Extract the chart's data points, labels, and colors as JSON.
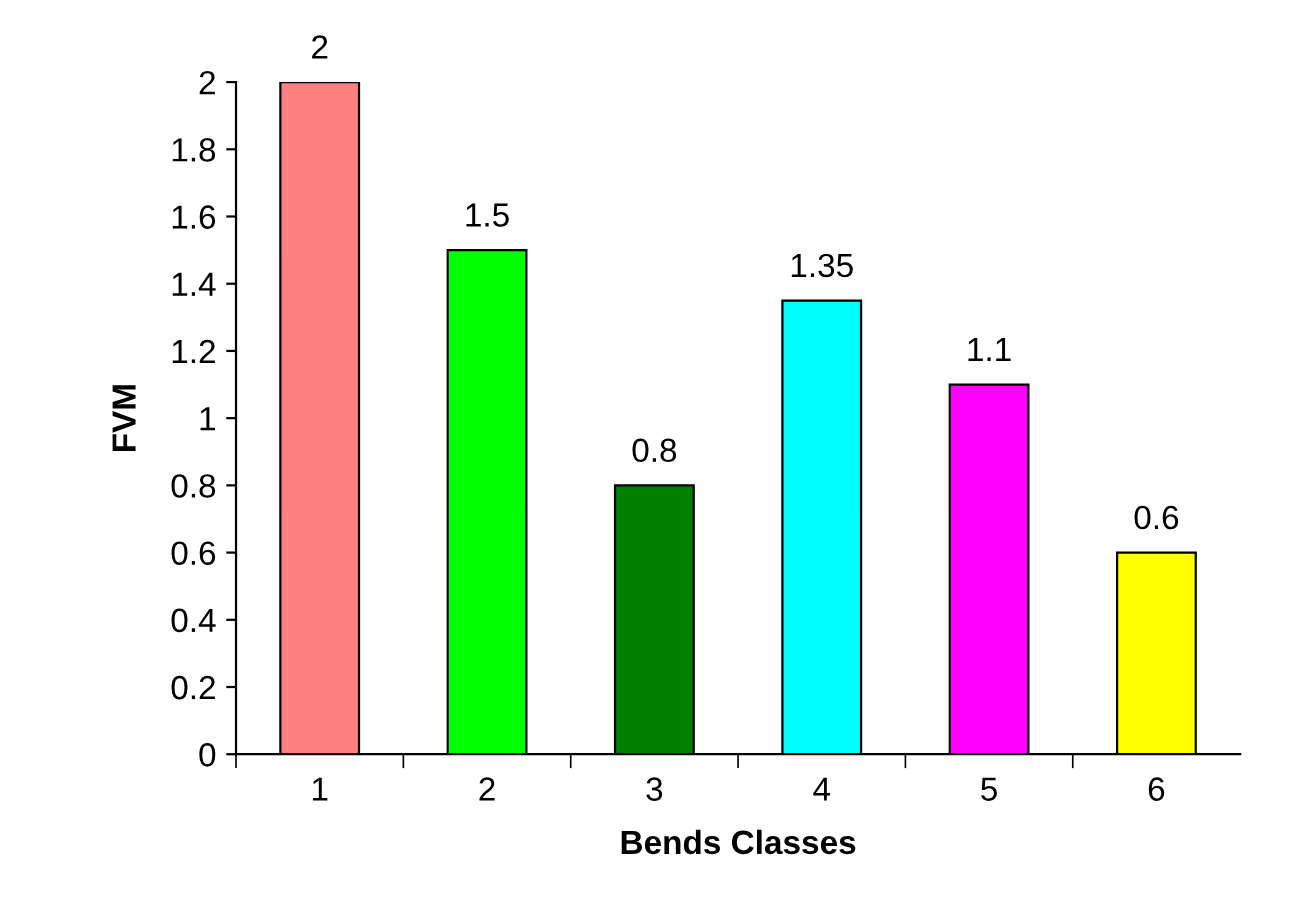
{
  "chart_data": {
    "type": "bar",
    "xlabel": "Bends Classes",
    "ylabel": "FVM",
    "categories": [
      "1",
      "2",
      "3",
      "4",
      "5",
      "6"
    ],
    "values": [
      2,
      1.5,
      0.8,
      1.35,
      1.1,
      0.6
    ],
    "colors": [
      "#ff8080",
      "#00ff00",
      "#008000",
      "#00ffff",
      "#ff00ff",
      "#ffff00"
    ],
    "ylim": [
      0,
      2
    ],
    "yticks": [
      0,
      0.2,
      0.4,
      0.6,
      0.8,
      1,
      1.2,
      1.4,
      1.6,
      1.8,
      2
    ],
    "data_labels": true,
    "grid": false,
    "legend": false
  }
}
